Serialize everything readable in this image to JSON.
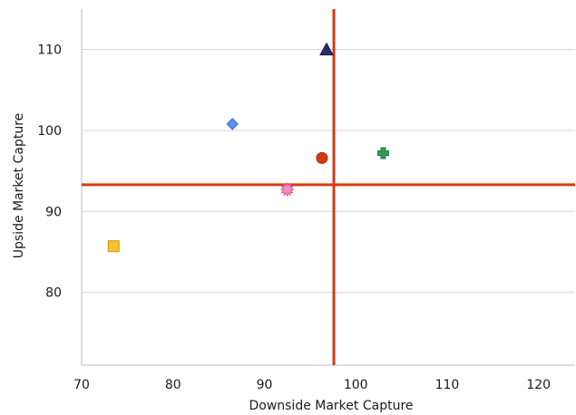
{
  "chart_data": {
    "type": "scatter",
    "title": "",
    "xlabel": "Downside Market Capture",
    "ylabel": "Upside Market Capture",
    "xlim": [
      70,
      124
    ],
    "ylim": [
      71,
      115
    ],
    "xticks": [
      70,
      80,
      90,
      100,
      110,
      120
    ],
    "yticks": [
      80,
      90,
      100,
      110
    ],
    "grid": "horizontal",
    "legend": "none",
    "reference_lines": {
      "vertical_x": 97.6,
      "horizontal_y": 93.3,
      "color": "#d63a12"
    },
    "points": [
      {
        "x": 73.5,
        "y": 85.7,
        "marker": "square",
        "color": "#f5c12e",
        "stroke": "#c99a12"
      },
      {
        "x": 86.5,
        "y": 100.8,
        "marker": "diamond",
        "color": "#5b8ff0",
        "stroke": "#3566c8"
      },
      {
        "x": 92.5,
        "y": 92.7,
        "marker": "starburst",
        "color": "#f28fc0",
        "stroke": "#d8609e"
      },
      {
        "x": 96.3,
        "y": 96.6,
        "marker": "circle",
        "color": "#d63a12",
        "stroke": "#b02a08"
      },
      {
        "x": 96.8,
        "y": 110.0,
        "marker": "triangle",
        "color": "#2a2d6e",
        "stroke": "#1a1c4e"
      },
      {
        "x": 103.0,
        "y": 97.2,
        "marker": "cross",
        "color": "#2e9a5e",
        "stroke": "#1f7a45"
      }
    ]
  }
}
